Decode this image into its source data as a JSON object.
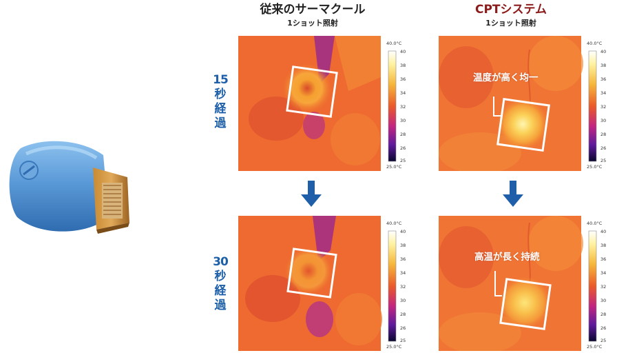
{
  "columns": {
    "left": {
      "title": "従来のサーマクール",
      "subtitle": "1ショット照射",
      "title_color": "#222222"
    },
    "right": {
      "title": "CPTシステム",
      "subtitle": "1ショット照射",
      "title_color": "#8b1a1a"
    }
  },
  "rows": [
    {
      "num": "15",
      "chars": [
        "秒",
        "経",
        "過"
      ]
    },
    {
      "num": "30",
      "chars": [
        "秒",
        "経",
        "過"
      ]
    }
  ],
  "callouts": {
    "top_right": "温度が高く均一",
    "bottom_right": "高温が長く持続"
  },
  "scale": {
    "top_label": "40.0°C",
    "bottom_label": "25.0°C",
    "ticks": [
      "40",
      "38",
      "36",
      "34",
      "32",
      "30",
      "28",
      "26",
      "25"
    ]
  },
  "colors": {
    "row_label": "#1d5fa8",
    "arrow": "#1f5ea8",
    "device": "#5b9ad8"
  }
}
